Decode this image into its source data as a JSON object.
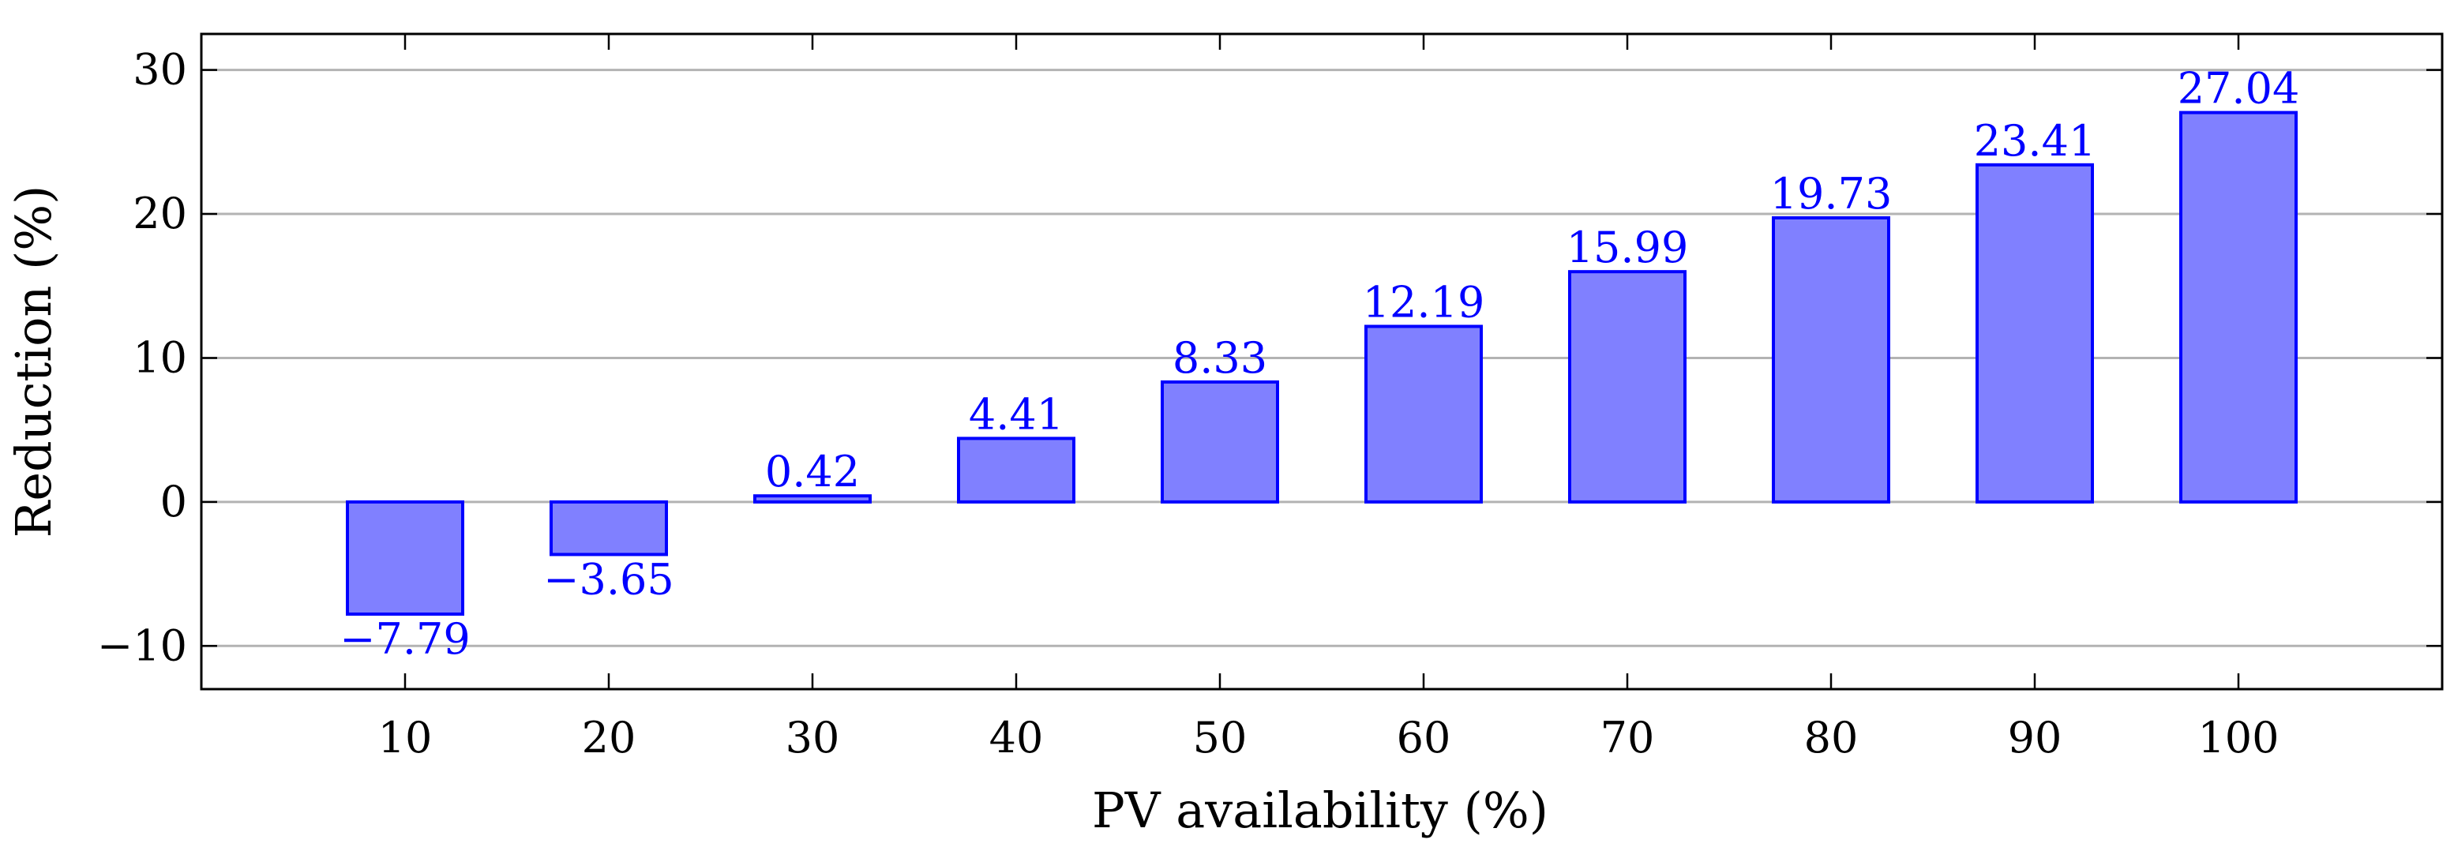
{
  "chart_data": {
    "type": "bar",
    "title": "",
    "xlabel": "PV availability (%)",
    "ylabel": "Reduction (%)",
    "categories": [
      "10",
      "20",
      "30",
      "40",
      "50",
      "60",
      "70",
      "80",
      "90",
      "100"
    ],
    "x": [
      10,
      20,
      30,
      40,
      50,
      60,
      70,
      80,
      90,
      100
    ],
    "values": [
      -7.79,
      -3.65,
      0.42,
      4.41,
      8.33,
      12.19,
      15.99,
      19.73,
      23.41,
      27.04
    ],
    "value_labels": [
      "−7.79",
      "−3.65",
      "0.42",
      "4.41",
      "8.33",
      "12.19",
      "15.99",
      "19.73",
      "23.41",
      "27.04"
    ],
    "xlim": [
      0,
      110
    ],
    "ylim": [
      -13,
      32.5
    ],
    "yticks": [
      -10,
      0,
      10,
      20,
      30
    ],
    "ytick_labels": [
      "−10",
      "0",
      "10",
      "20",
      "30"
    ],
    "grid": "horizontal",
    "legend": "none",
    "colors": {
      "bar_fill": "#8080ff",
      "bar_stroke": "#0000ff",
      "label": "#0000ff",
      "grid": "#b3b3b3",
      "axis": "#000000"
    }
  }
}
